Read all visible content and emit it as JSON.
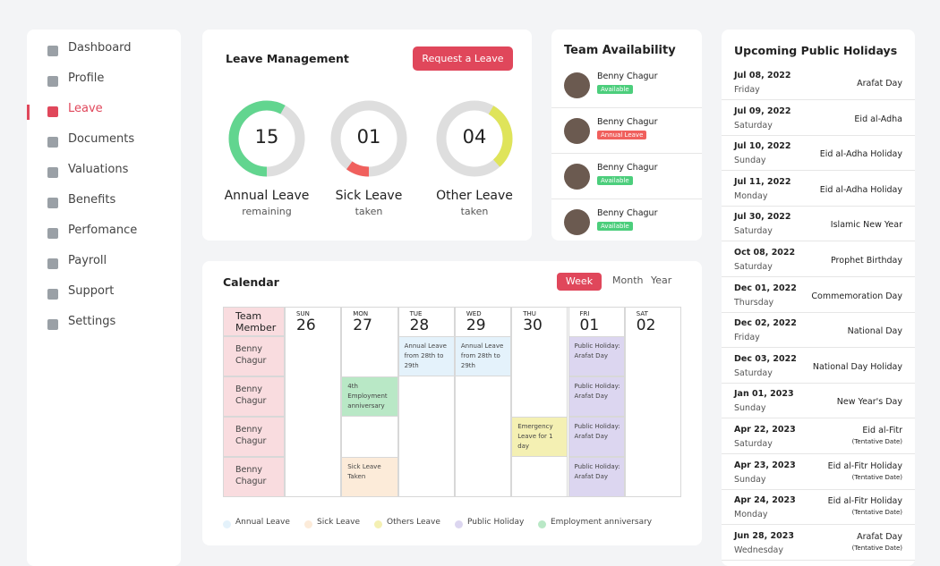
{
  "sidebar": {
    "items": [
      "Dashboard",
      "Profile",
      "Leave",
      "Documents",
      "Valuations",
      "Benefits",
      "Perfomance",
      "Payroll",
      "Support",
      "Settings"
    ],
    "active": "Leave"
  },
  "leave": {
    "title": "Leave Management",
    "button": "Request a Leave",
    "gauges": [
      {
        "value": "15",
        "label": "Annual Leave",
        "sub": "remaining",
        "color": "#62d58f"
      },
      {
        "value": "01",
        "label": "Sick Leave",
        "sub": "taken",
        "color": "#f0605d"
      },
      {
        "value": "04",
        "label": "Other Leave",
        "sub": "taken",
        "color": "#dfe45a"
      }
    ]
  },
  "team": {
    "title": "Team Availability",
    "members": [
      {
        "name": "Benny Chagur",
        "status": "Available",
        "color": "#4cce7c"
      },
      {
        "name": "Benny Chagur",
        "status": "Annual Leave",
        "color": "#f0605d"
      },
      {
        "name": "Benny Chagur",
        "status": "Available",
        "color": "#4cce7c"
      },
      {
        "name": "Benny Chagur",
        "status": "Available",
        "color": "#4cce7c"
      }
    ]
  },
  "calendar": {
    "title": "Calendar",
    "views": [
      "Week",
      "Month",
      "Year"
    ],
    "active_view": "Week",
    "header": "Team Member",
    "days": [
      {
        "dow": "SUN",
        "num": "26"
      },
      {
        "dow": "MON",
        "num": "27"
      },
      {
        "dow": "TUE",
        "num": "28"
      },
      {
        "dow": "WED",
        "num": "29"
      },
      {
        "dow": "THU",
        "num": "30"
      },
      {
        "dow": "FRI",
        "num": "01"
      },
      {
        "dow": "SAT",
        "num": "02"
      }
    ],
    "rows": [
      {
        "name": "Benny Chagur",
        "cells": [
          null,
          null,
          {
            "text": "Annual Leave from 28th to 29th",
            "color": "#e4f2fb"
          },
          {
            "text": "Annual Leave from 28th to 29th",
            "color": "#e4f2fb"
          },
          null,
          {
            "text": "Public Holiday: Arafat Day",
            "color": "#dcd6f0"
          },
          null
        ]
      },
      {
        "name": "Benny Chagur",
        "cells": [
          null,
          {
            "text": "4th Employment anniversary",
            "color": "#b9e8c6"
          },
          null,
          null,
          null,
          {
            "text": "Public Holiday: Arafat Day",
            "color": "#dcd6f0"
          },
          null
        ]
      },
      {
        "name": "Benny Chagur",
        "cells": [
          null,
          null,
          null,
          null,
          {
            "text": "Emergency Leave for 1 day",
            "color": "#f4f0b3"
          },
          {
            "text": "Public Holiday: Arafat Day",
            "color": "#dcd6f0"
          },
          null
        ]
      },
      {
        "name": "Benny Chagur",
        "cells": [
          null,
          {
            "text": "Sick Leave Taken",
            "color": "#fcebd9"
          },
          null,
          null,
          null,
          {
            "text": "Public Holiday: Arafat Day",
            "color": "#dcd6f0"
          },
          null
        ]
      }
    ],
    "legend": [
      {
        "label": "Annual Leave",
        "color": "#e4f2fb"
      },
      {
        "label": "Sick Leave",
        "color": "#fcebd9"
      },
      {
        "label": "Others Leave",
        "color": "#f4f0b3"
      },
      {
        "label": "Public Holiday",
        "color": "#dcd6f0"
      },
      {
        "label": "Employment anniversary",
        "color": "#b9e8c6"
      }
    ]
  },
  "holidays": {
    "title": "Upcoming Public Holidays",
    "items": [
      {
        "date": "Jul 08, 2022",
        "day": "Friday",
        "name": "Arafat Day"
      },
      {
        "date": "Jul 09, 2022",
        "day": "Saturday",
        "name": "Eid al-Adha"
      },
      {
        "date": "Jul 10, 2022",
        "day": "Sunday",
        "name": "Eid al-Adha Holiday"
      },
      {
        "date": "Jul 11, 2022",
        "day": "Monday",
        "name": "Eid al-Adha Holiday"
      },
      {
        "date": "Jul 30, 2022",
        "day": "Saturday",
        "name": "Islamic New Year"
      },
      {
        "date": "Oct 08, 2022",
        "day": "Saturday",
        "name": "Prophet Birthday"
      },
      {
        "date": "Dec 01, 2022",
        "day": "Thursday",
        "name": "Commemoration Day"
      },
      {
        "date": "Dec 02, 2022",
        "day": "Friday",
        "name": "National Day"
      },
      {
        "date": "Dec 03, 2022",
        "day": "Saturday",
        "name": "National Day Holiday"
      },
      {
        "date": "Jan 01, 2023",
        "day": "Sunday",
        "name": "New Year's Day"
      },
      {
        "date": "Apr 22, 2023",
        "day": "Saturday",
        "name": "Eid al-Fitr",
        "note": "(Tentative Date)"
      },
      {
        "date": "Apr 23, 2023",
        "day": "Sunday",
        "name": "Eid al-Fitr Holiday",
        "note": "(Tentative Date)"
      },
      {
        "date": "Apr 24, 2023",
        "day": "Monday",
        "name": "Eid al-Fitr Holiday",
        "note": "(Tentative Date)"
      },
      {
        "date": "Jun 28, 2023",
        "day": "Wednesday",
        "name": "Arafat Day",
        "note": "(Tentative Date)"
      }
    ]
  }
}
